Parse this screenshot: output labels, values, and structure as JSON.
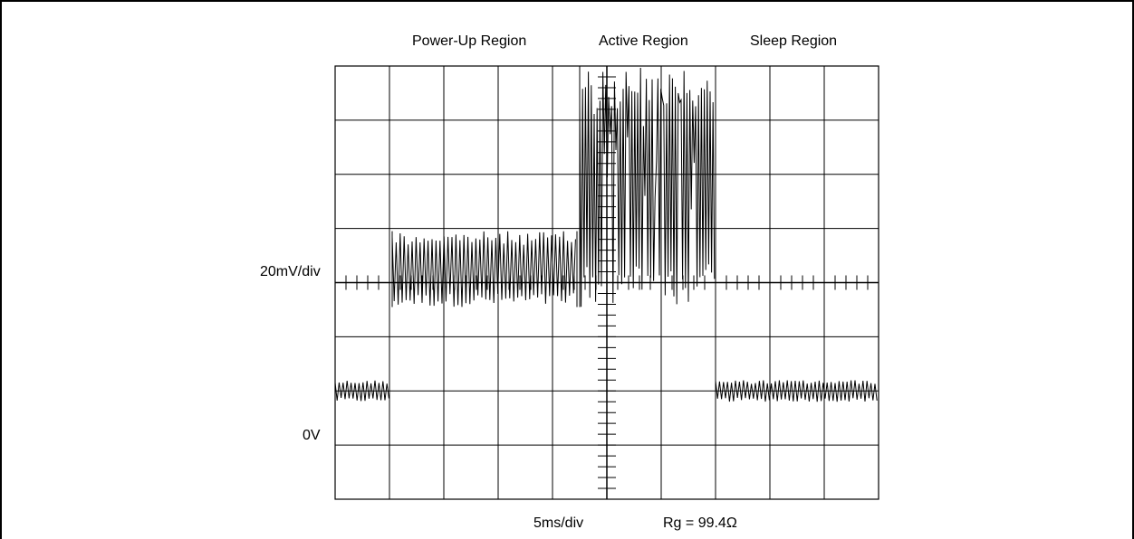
{
  "chart_data": {
    "type": "line",
    "title": "",
    "region_labels": [
      "Power-Up Region",
      "Active Region",
      "Sleep Region"
    ],
    "ylabel": "20mV/div",
    "zero_label": "0V",
    "xlabel": "5ms/div",
    "annotation": "Rg = 99.4Ω",
    "x_divisions": 10,
    "y_divisions": 8,
    "x_unit": "div",
    "y_unit": "div",
    "ylim": [
      -1.9,
      6.1
    ],
    "xlim": [
      0,
      10
    ],
    "grid": true,
    "trace_color": "#000000",
    "segments": [
      {
        "name": "",
        "x_start": 0.0,
        "x_end": 1.0,
        "y_low": -0.1,
        "y_high": 0.3
      },
      {
        "name": "",
        "x_start": 1.05,
        "x_end": 4.45,
        "y_low": 1.65,
        "y_high": 3.05
      },
      {
        "name": "",
        "x_start": 4.5,
        "x_end": 7.0,
        "y_low": 1.65,
        "y_high": 6.1
      },
      {
        "name": "",
        "x_start": 7.0,
        "x_end": 10.0,
        "y_low": -0.1,
        "y_high": 0.3
      }
    ]
  }
}
